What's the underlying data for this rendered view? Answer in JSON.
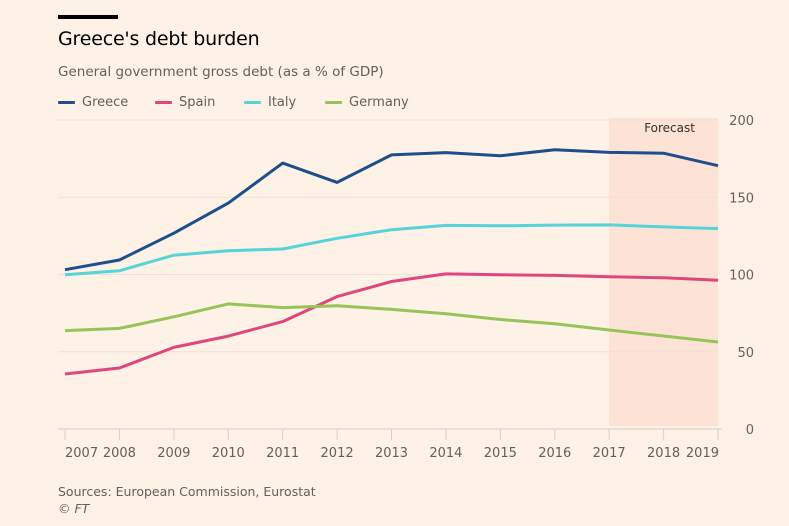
{
  "header": {
    "title": "Greece's debt burden",
    "subtitle": "General government gross debt (as a % of GDP)"
  },
  "footer": {
    "source": "Sources: European Commission, Eurostat",
    "copyright": "© FT"
  },
  "colors": {
    "background": "#fef1e5",
    "forecast_band": "#fde3d6",
    "gridline": "#ece2d8",
    "axis": "#d9cfc6",
    "tick_label": "#66605c"
  },
  "chart_data": {
    "type": "line",
    "title": "Greece's debt burden",
    "subtitle": "General government gross debt (as a % of GDP)",
    "xlabel": "",
    "ylabel": "",
    "x": [
      2007,
      2008,
      2009,
      2010,
      2011,
      2012,
      2013,
      2014,
      2015,
      2016,
      2017,
      2018,
      2019
    ],
    "x_tick_labels": [
      "2007",
      "2008",
      "2009",
      "2010",
      "2011",
      "2012",
      "2013",
      "2014",
      "2015",
      "2016",
      "2017",
      "2018",
      "2019"
    ],
    "ylim": [
      0,
      200
    ],
    "y_ticks": [
      0,
      50,
      100,
      150,
      200
    ],
    "y_axis_side": "right",
    "grid": true,
    "legend_position": "top-left",
    "annotations": [
      {
        "type": "shaded_range",
        "x_from": 2017,
        "x_to": 2019,
        "label": "Forecast"
      }
    ],
    "series": [
      {
        "name": "Greece",
        "color": "#1f4e8c",
        "values": [
          103.1,
          109.4,
          126.7,
          146.2,
          172.1,
          159.6,
          177.4,
          178.9,
          176.8,
          180.8,
          179.0,
          178.5,
          170.4
        ]
      },
      {
        "name": "Spain",
        "color": "#e0457d",
        "values": [
          35.6,
          39.5,
          52.8,
          60.1,
          69.5,
          85.7,
          95.5,
          100.4,
          99.8,
          99.4,
          98.5,
          97.9,
          96.3
        ]
      },
      {
        "name": "Italy",
        "color": "#56d4d8",
        "values": [
          99.8,
          102.4,
          112.5,
          115.4,
          116.5,
          123.4,
          129.0,
          131.8,
          131.5,
          132.0,
          132.1,
          130.8,
          129.7
        ]
      },
      {
        "name": "Germany",
        "color": "#96c35a",
        "values": [
          63.7,
          65.1,
          72.6,
          81.0,
          78.6,
          79.8,
          77.4,
          74.6,
          70.9,
          68.1,
          64.1,
          60.2,
          56.3
        ]
      }
    ]
  }
}
